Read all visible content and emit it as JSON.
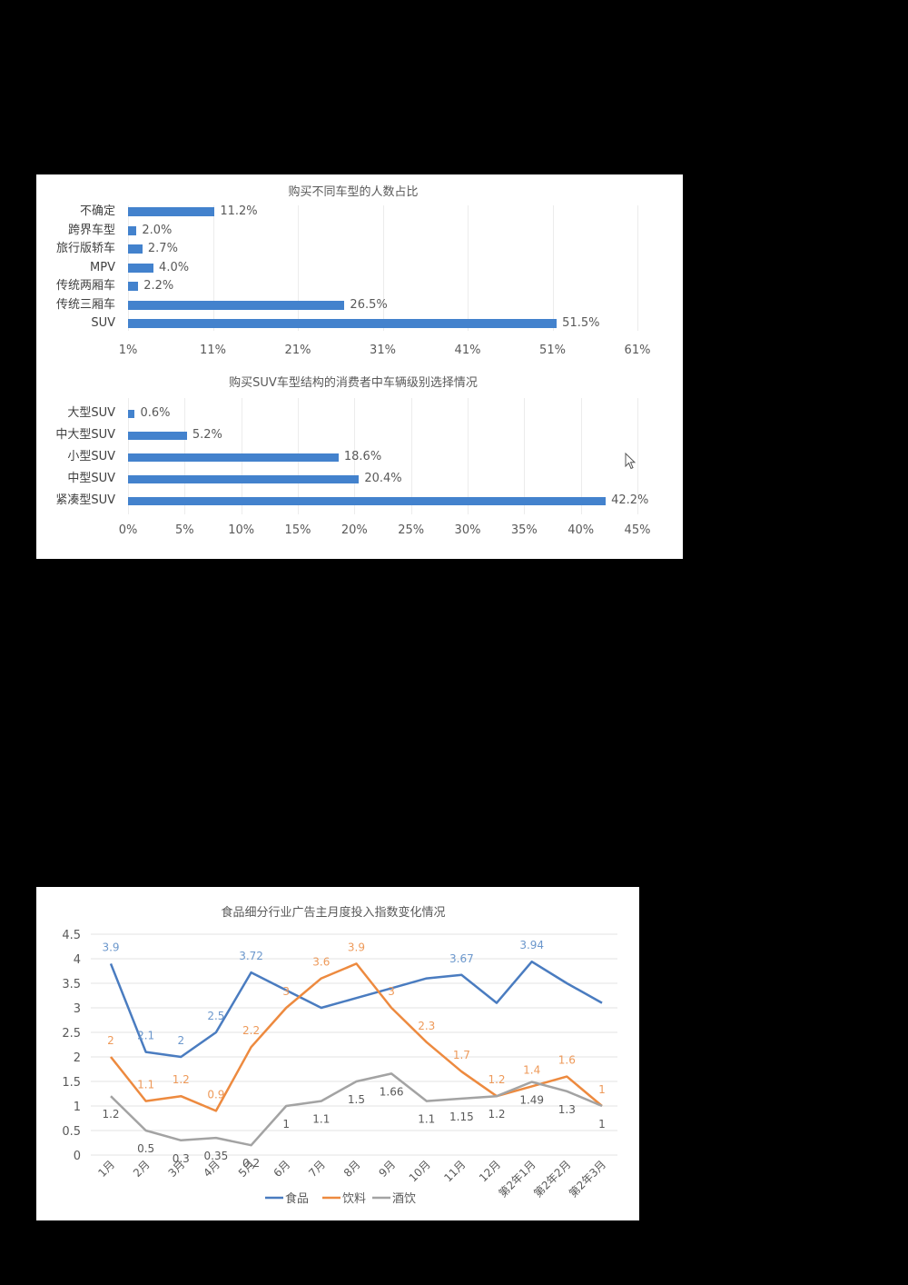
{
  "chart_data": [
    {
      "type": "bar",
      "orientation": "horizontal",
      "title": "购买不同车型的人数占比",
      "categories": [
        "不确定",
        "跨界车型",
        "旅行版轿车",
        "MPV",
        "传统两厢车",
        "传统三厢车",
        "SUV"
      ],
      "values": [
        11.2,
        2.0,
        2.7,
        4.0,
        2.2,
        26.5,
        51.5
      ],
      "value_labels": [
        "11.2%",
        "2.0%",
        "2.7%",
        "4.0%",
        "2.2%",
        "26.5%",
        "51.5%"
      ],
      "xticks": [
        "1%",
        "11%",
        "21%",
        "31%",
        "41%",
        "51%",
        "61%"
      ],
      "xtick_values": [
        1,
        11,
        21,
        31,
        41,
        51,
        61
      ],
      "xlim": [
        1,
        61
      ],
      "xlabel": "",
      "ylabel": "",
      "grid": "vertical",
      "legend": "none",
      "color": "#4382cd"
    },
    {
      "type": "bar",
      "orientation": "horizontal",
      "title": "购买SUV车型结构的消费者中车辆级别选择情况",
      "categories": [
        "大型SUV",
        "中大型SUV",
        "小型SUV",
        "中型SUV",
        "紧凑型SUV"
      ],
      "values": [
        0.6,
        5.2,
        18.6,
        20.4,
        42.2
      ],
      "value_labels": [
        "0.6%",
        "5.2%",
        "18.6%",
        "20.4%",
        "42.2%"
      ],
      "xticks": [
        "0%",
        "5%",
        "10%",
        "15%",
        "20%",
        "25%",
        "30%",
        "35%",
        "40%",
        "45%"
      ],
      "xtick_values": [
        0,
        5,
        10,
        15,
        20,
        25,
        30,
        35,
        40,
        45
      ],
      "xlim": [
        0,
        45
      ],
      "xlabel": "",
      "ylabel": "",
      "grid": "vertical",
      "legend": "none",
      "color": "#4382cd"
    },
    {
      "type": "line",
      "title": "食品细分行业广告主月度投入指数变化情况",
      "categories": [
        "1月",
        "2月",
        "3月",
        "4月",
        "5月",
        "6月",
        "7月",
        "8月",
        "9月",
        "10月",
        "11月",
        "12月",
        "第2年1月",
        "第2年2月",
        "第2年3月"
      ],
      "series": [
        {
          "name": "食品",
          "color": "#4a7cc0",
          "label_color": "#6b97cc",
          "values": [
            3.9,
            2.1,
            2,
            2.5,
            3.72,
            3.36,
            3.0,
            3.2,
            3.4,
            3.6,
            3.67,
            3.1,
            3.94,
            3.5,
            3.1
          ],
          "labels": [
            "3.9",
            "2.1",
            "2",
            "2.5",
            "3.72",
            null,
            null,
            null,
            null,
            null,
            "3.67",
            null,
            "3.94",
            null,
            null
          ]
        },
        {
          "name": "饮料",
          "color": "#ed8a3f",
          "label_color": "#ee9a5a",
          "values": [
            2,
            1.1,
            1.2,
            0.9,
            2.2,
            3,
            3.6,
            3.9,
            3,
            2.3,
            1.7,
            1.2,
            1.4,
            1.6,
            1
          ],
          "labels": [
            "2",
            "1.1",
            "1.2",
            "0.9",
            "2.2",
            "3",
            "3.6",
            "3.9",
            "3",
            "2.3",
            "1.7",
            "1.2",
            "1.4",
            "1.6",
            "1"
          ]
        },
        {
          "name": "酒饮",
          "color": "#a3a3a3",
          "label_color": "#595959",
          "values": [
            1.2,
            0.5,
            0.3,
            0.35,
            0.2,
            1,
            1.1,
            1.5,
            1.66,
            1.1,
            1.15,
            1.2,
            1.49,
            1.3,
            1
          ],
          "labels": [
            "1.2",
            "0.5",
            "0.3",
            "0.35",
            "0.2",
            "1",
            "1.1",
            "1.5",
            "1.66",
            "1.1",
            "1.15",
            "1.2",
            "1.49",
            "1.3",
            "1"
          ]
        }
      ],
      "yticks": [
        "0",
        "0.5",
        "1",
        "1.5",
        "2",
        "2.5",
        "3",
        "3.5",
        "4",
        "4.5"
      ],
      "ytick_values": [
        0,
        0.5,
        1,
        1.5,
        2,
        2.5,
        3,
        3.5,
        4,
        4.5
      ],
      "ylim": [
        0,
        4.5
      ],
      "xlabel": "",
      "ylabel": "",
      "grid": "horizontal",
      "legend": "bottom"
    }
  ]
}
